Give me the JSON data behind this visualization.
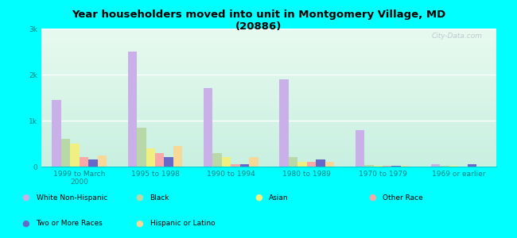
{
  "title": "Year householders moved into unit in Montgomery Village, MD\n(20886)",
  "categories": [
    "1999 to March\n2000",
    "1995 to 1998",
    "1990 to 1994",
    "1980 to 1989",
    "1970 to 1979",
    "1969 or earlier"
  ],
  "series_order": [
    "White Non-Hispanic",
    "Black",
    "Asian",
    "Other Race",
    "Two or More Races",
    "Hispanic or Latino"
  ],
  "series": {
    "White Non-Hispanic": [
      1450,
      2500,
      1700,
      1900,
      800,
      50
    ],
    "Black": [
      600,
      850,
      300,
      200,
      30,
      10
    ],
    "Asian": [
      500,
      400,
      200,
      100,
      20,
      10
    ],
    "Other Race": [
      200,
      300,
      50,
      100,
      10,
      5
    ],
    "Two or More Races": [
      150,
      200,
      50,
      150,
      10,
      50
    ],
    "Hispanic or Latino": [
      250,
      450,
      200,
      100,
      10,
      5
    ]
  },
  "colors": {
    "White Non-Hispanic": "#c9b0e8",
    "Black": "#b8d8a8",
    "Asian": "#f0f080",
    "Other Race": "#f8a8a8",
    "Two or More Races": "#6868c8",
    "Hispanic or Latino": "#f8d898"
  },
  "ylim": [
    0,
    3000
  ],
  "yticks": [
    0,
    1000,
    2000,
    3000
  ],
  "ytick_labels": [
    "0",
    "1k",
    "2k",
    "3k"
  ],
  "background_color": "#00ffff",
  "watermark": "City-Data.com",
  "bar_width": 0.12,
  "legend_items_row1": [
    [
      "White Non-Hispanic",
      "#c9b0e8"
    ],
    [
      "Black",
      "#b8d8a8"
    ],
    [
      "Asian",
      "#f0f080"
    ],
    [
      "Other Race",
      "#f8a8a8"
    ]
  ],
  "legend_items_row2": [
    [
      "Two or More Races",
      "#6868c8"
    ],
    [
      "Hispanic or Latino",
      "#f8d898"
    ]
  ]
}
